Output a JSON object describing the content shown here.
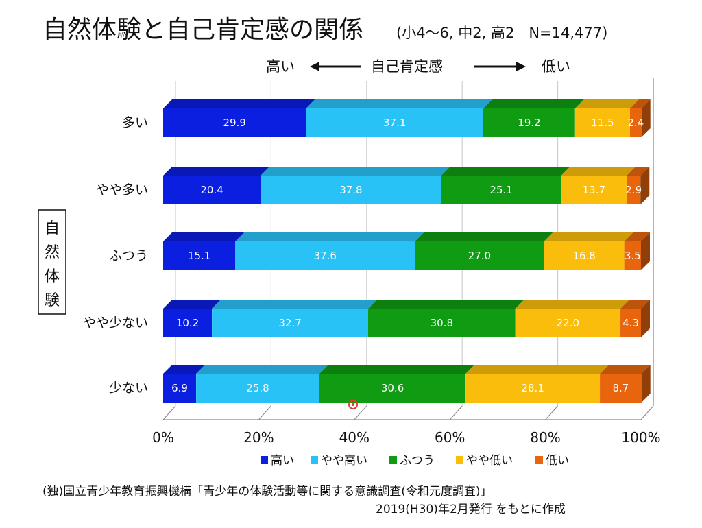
{
  "header": {
    "title": "自然体験と自己肯定感の関係",
    "subtitle": "(小4～6, 中2, 高2　N=14,477)"
  },
  "direction": {
    "left": "高い",
    "center": "自己肯定感",
    "right": "低い"
  },
  "vertical_label": [
    "自",
    "然",
    "体",
    "験"
  ],
  "source": {
    "line1": "(独)国立青少年教育振興機構「青少年の体験活動等に関する意識調査(令和元度調査)」",
    "line2": "2019(H30)年2月発行 をもとに作成"
  },
  "colors": {
    "高い": "#0a1fe0",
    "やや高い": "#29c2f7",
    "ふつう": "#0f9b12",
    "やや低い": "#fbbd0b",
    "低い": "#e8650d"
  },
  "chart_data": {
    "type": "bar",
    "orientation": "horizontal",
    "stacked": true,
    "percent": true,
    "categories": [
      "多い",
      "やや多い",
      "ふつう",
      "やや少ない",
      "少ない"
    ],
    "series": [
      {
        "name": "高い",
        "values": [
          29.9,
          20.4,
          15.1,
          10.2,
          6.9
        ]
      },
      {
        "name": "やや高い",
        "values": [
          37.1,
          37.8,
          37.6,
          32.7,
          25.8
        ]
      },
      {
        "name": "ふつう",
        "values": [
          19.2,
          25.1,
          27.0,
          30.8,
          30.6
        ]
      },
      {
        "name": "やや低い",
        "values": [
          11.5,
          13.7,
          16.8,
          22.0,
          28.1
        ]
      },
      {
        "name": "低い",
        "values": [
          2.4,
          2.9,
          3.5,
          4.3,
          8.7
        ]
      }
    ],
    "xlim": [
      0,
      100
    ],
    "xticks": [
      "0%",
      "20%",
      "40%",
      "60%",
      "80%",
      "100%"
    ],
    "grid": true,
    "legend": "bottom"
  }
}
